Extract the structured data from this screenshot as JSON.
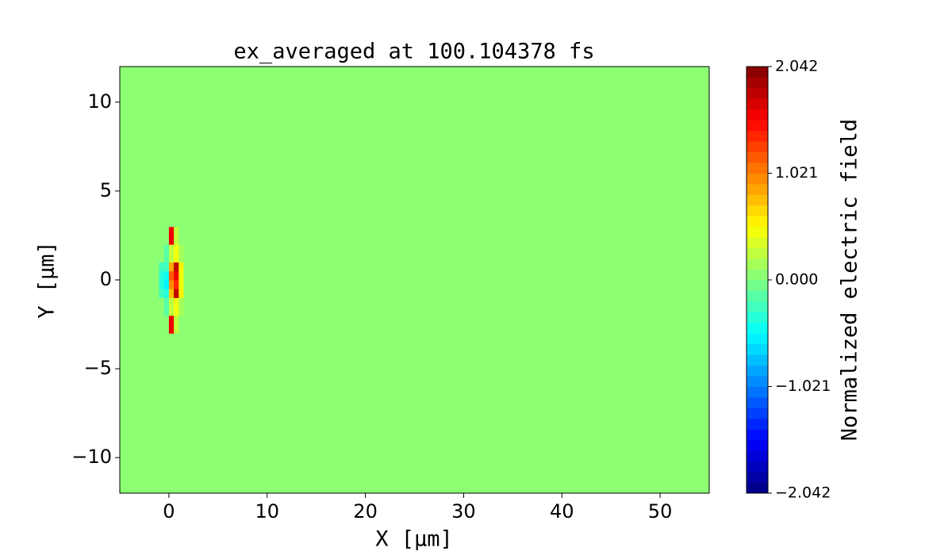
{
  "chart_data": {
    "type": "heatmap",
    "title": "ex_averaged at 100.104378 fs",
    "x_label": "X [μm]",
    "y_label": "Y [μm]",
    "colorbar_label": "Normalized electric field",
    "colormap": "jet",
    "xbins": [
      -5,
      -1,
      -0.5,
      0,
      0.5,
      1,
      1.5,
      55
    ],
    "ybins": [
      -12,
      -3,
      -2,
      -1,
      -0.5,
      0,
      0.5,
      1,
      2,
      3,
      12
    ],
    "z": [
      [
        0,
        0,
        0,
        0,
        0,
        0,
        0
      ],
      [
        0,
        0,
        0,
        1.6,
        0.3,
        0,
        0
      ],
      [
        0,
        0.1,
        -0.2,
        0.3,
        0.5,
        0.2,
        0
      ],
      [
        0.1,
        -0.3,
        -0.4,
        0.8,
        1.8,
        0.6,
        0
      ],
      [
        0.1,
        -0.4,
        -0.6,
        1.0,
        1.4,
        0.5,
        0
      ],
      [
        0.1,
        -0.4,
        -0.5,
        1.2,
        1.6,
        0.5,
        0
      ],
      [
        0.1,
        -0.3,
        -0.3,
        0.9,
        1.8,
        0.6,
        0
      ],
      [
        0,
        0.1,
        -0.2,
        0.3,
        0.5,
        0.2,
        0
      ],
      [
        0,
        0,
        0,
        1.6,
        0.3,
        0,
        0
      ],
      [
        0,
        0,
        0,
        0,
        0,
        0,
        0
      ]
    ],
    "xlim": [
      -5,
      55
    ],
    "xticks": [
      0,
      10,
      20,
      30,
      40,
      50
    ],
    "ylim": [
      -12,
      12
    ],
    "yticks": [
      {
        "value": -10,
        "label": "−10"
      },
      {
        "value": -5,
        "label": "−5"
      },
      0,
      5,
      10
    ],
    "zlim": [
      -2.042,
      2.042
    ],
    "cticks": [
      {
        "value": -2.042,
        "label": "−2.042"
      },
      {
        "value": -1.021,
        "label": "−1.021"
      },
      {
        "value": 0,
        "label": "0.000"
      },
      1.021,
      2.042
    ]
  }
}
